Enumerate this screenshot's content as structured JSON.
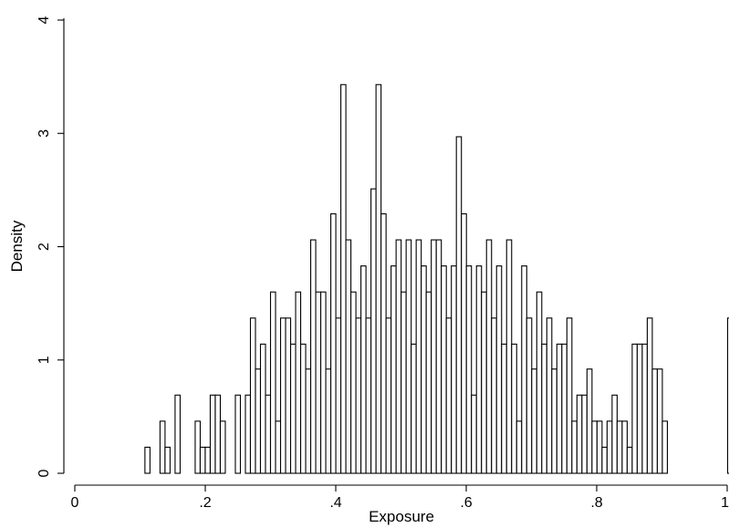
{
  "chart_data": {
    "type": "bar",
    "title": "",
    "xlabel": "Exposure",
    "ylabel": "Density",
    "xlim": [
      0,
      1
    ],
    "ylim": [
      0,
      4
    ],
    "grid": false,
    "bar_fill": "#ffffff",
    "bar_stroke": "#000000",
    "x_ticks": [
      {
        "value": 0,
        "label": "0"
      },
      {
        "value": 0.2,
        "label": ".2"
      },
      {
        "value": 0.4,
        "label": ".4"
      },
      {
        "value": 0.6,
        "label": ".6"
      },
      {
        "value": 0.8,
        "label": ".8"
      },
      {
        "value": 1,
        "label": "1"
      }
    ],
    "y_ticks": [
      {
        "value": 0,
        "label": "0"
      },
      {
        "value": 1,
        "label": "1"
      },
      {
        "value": 2,
        "label": "2"
      },
      {
        "value": 3,
        "label": "3"
      },
      {
        "value": 4,
        "label": "4"
      }
    ],
    "bin_start": 0.1075,
    "bin_width": 0.0077,
    "values": [
      0.23,
      0,
      0,
      0.46,
      0.23,
      0,
      0.69,
      0,
      0,
      0,
      0.46,
      0.23,
      0.23,
      0.69,
      0.69,
      0.46,
      0,
      0,
      0.69,
      0,
      0.69,
      1.37,
      0.92,
      1.14,
      0.69,
      1.6,
      0.46,
      1.37,
      1.37,
      1.14,
      1.6,
      1.14,
      0.92,
      2.06,
      1.6,
      1.6,
      0.92,
      2.29,
      1.37,
      3.43,
      2.06,
      1.6,
      1.37,
      1.83,
      1.37,
      2.51,
      3.43,
      2.29,
      1.37,
      1.83,
      2.06,
      1.6,
      2.06,
      1.14,
      2.06,
      1.83,
      1.6,
      2.06,
      2.06,
      1.83,
      1.37,
      1.83,
      2.97,
      2.29,
      1.83,
      0.69,
      1.83,
      1.6,
      2.06,
      1.37,
      1.83,
      1.14,
      2.06,
      1.14,
      0.46,
      1.83,
      1.37,
      0.92,
      1.6,
      1.14,
      1.37,
      0.92,
      1.14,
      1.14,
      1.37,
      0.46,
      0.69,
      0.69,
      0.92,
      0.46,
      0.46,
      0.23,
      0.46,
      0.69,
      0.46,
      0.46,
      0.23,
      1.14,
      1.14,
      1.14,
      1.37,
      0.92,
      0.92,
      0.46,
      0,
      0,
      0,
      0,
      0,
      0,
      0,
      0,
      0,
      0,
      0,
      0,
      1.37
    ]
  }
}
